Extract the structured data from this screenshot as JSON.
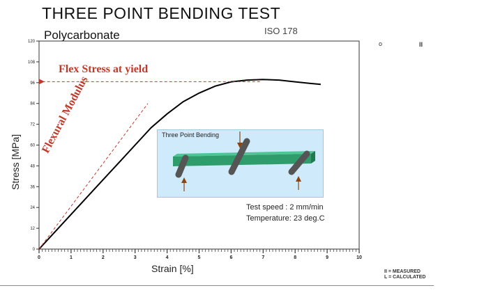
{
  "chart_data": {
    "type": "line",
    "title": "THREE POINT BENDING TEST",
    "subtitle": "Polycarbonate",
    "standard": "ISO 178",
    "xlabel": "Strain [%]",
    "ylabel": "Stress [MPa]",
    "xlim": [
      0,
      10
    ],
    "ylim": [
      0,
      120
    ],
    "x_ticks": [
      0,
      1,
      2,
      3,
      4,
      5,
      6,
      7,
      8,
      9,
      10
    ],
    "y_ticks": [
      0,
      12,
      24,
      36,
      48,
      60,
      72,
      84,
      96,
      108,
      120
    ],
    "grid": false,
    "series": [
      {
        "values": [
          [
            0,
            0
          ],
          [
            0.5,
            10
          ],
          [
            1,
            20
          ],
          [
            1.5,
            30
          ],
          [
            2,
            40
          ],
          [
            2.5,
            50
          ],
          [
            3,
            60
          ],
          [
            3.5,
            70
          ],
          [
            4,
            78
          ],
          [
            4.5,
            85
          ],
          [
            5,
            90
          ],
          [
            5.5,
            94
          ],
          [
            6,
            96.5
          ],
          [
            6.5,
            97.5
          ],
          [
            7,
            97.8
          ],
          [
            7.5,
            97.5
          ],
          [
            8,
            96.5
          ],
          [
            8.5,
            95.5
          ],
          [
            8.8,
            95
          ]
        ]
      }
    ],
    "modulus_line": [
      [
        0,
        0
      ],
      [
        3.4,
        84
      ]
    ],
    "yield_point": {
      "strain": 6.9,
      "stress": 97.8
    },
    "annotations": {
      "flex_stress": "Flex Stress at yield",
      "flexural_modulus": "Flexural Modulus"
    },
    "inset": {
      "title": "Three Point Bending",
      "test_speed": "Test speed : 2 mm/min",
      "temperature": "Temperature: 23 deg.C"
    },
    "legend": {
      "measured": "II = MEASURED",
      "calculated": "L = CALCULATED",
      "symbol_circle": "o",
      "symbol_bars": "II"
    },
    "colors": {
      "curve": "#000000",
      "annotation": "#c0392b",
      "beam": "#2e9d6b",
      "inset_bg": "#cfeafa"
    }
  }
}
